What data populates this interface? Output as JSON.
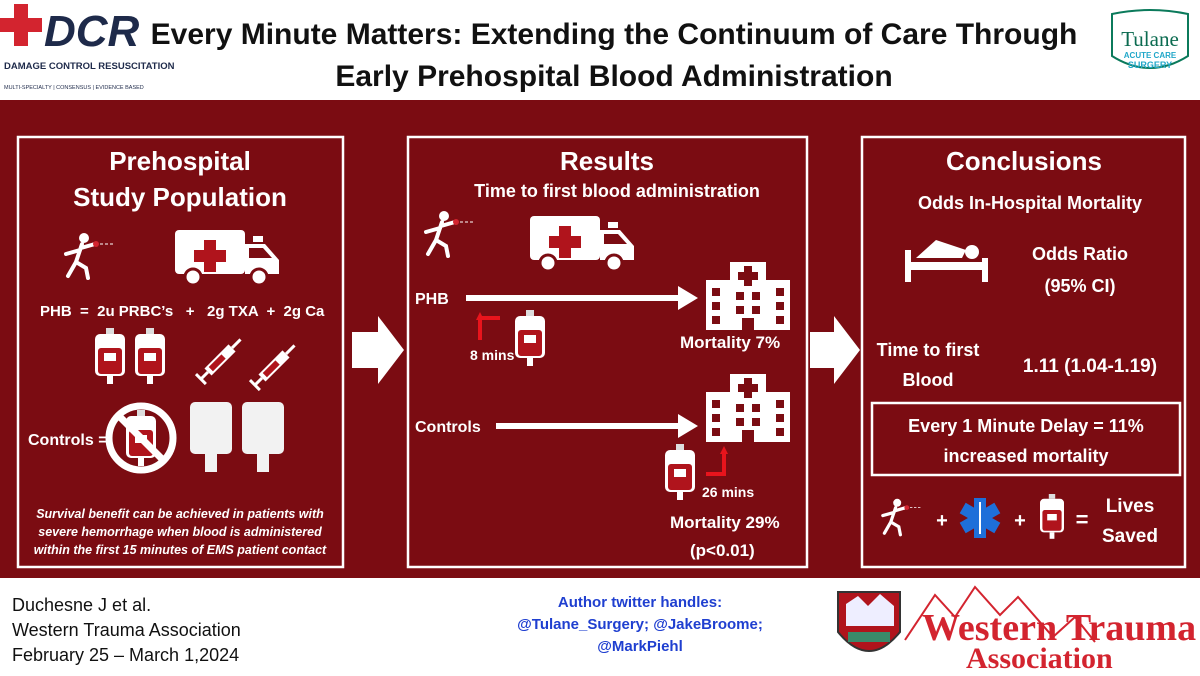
{
  "header": {
    "logo_left": {
      "mark": "DCR",
      "name": "DAMAGE CONTROL RESUSCITATION",
      "tagline": "MULTI-SPECIALTY | CONSENSUS | EVIDENCE BASED"
    },
    "title": [
      "Every Minute Matters: Extending the Continuum of Care Through",
      "Early Prehospital Blood Administration"
    ],
    "logo_right": {
      "name": "Tulane",
      "division": [
        "ACUTE CARE",
        "SURGERY"
      ]
    }
  },
  "population": {
    "title": [
      "Prehospital",
      "Study Population"
    ],
    "phb_definition": "PHB  =  2u PRBC’s   +   2g TXA  +  2g Ca",
    "controls": "Controls =",
    "note": [
      "Survival benefit can be achieved in patients with",
      "severe hemorrhage when blood is administered",
      "within the first 15 minutes of EMS patient contact"
    ]
  },
  "results": {
    "title": "Results",
    "subtitle": "Time to first blood administration",
    "phb": {
      "label": "PHB",
      "time": "8 mins",
      "mortality": "Mortality 7%"
    },
    "controls": {
      "label": "Controls",
      "time": "26 mins",
      "mortality": "Mortality 29%",
      "p_value": "(p<0.01)"
    }
  },
  "conclusions": {
    "title": "Conclusions",
    "subtitle": "Odds In-Hospital Mortality",
    "column_header": [
      "Odds Ratio",
      "(95% CI)"
    ],
    "row_label": [
      "Time to first",
      "Blood"
    ],
    "row_value": "1.11 (1.04-1.19)",
    "callout": [
      "Every 1 Minute Delay = 11%",
      "increased mortality"
    ],
    "equation": {
      "plus_1": "+",
      "plus_2": "+",
      "equals": "=",
      "result": [
        "Lives",
        "Saved"
      ]
    }
  },
  "footer": {
    "citation": [
      "Duchesne J et al.",
      "Western Trauma Association",
      "February 25 – March 1,2024"
    ],
    "twitter": [
      "Author twitter handles:",
      "@Tulane_Surgery; @JakeBroome;",
      "@MarkPiehl"
    ],
    "association": [
      "Western Trauma",
      "Association"
    ]
  }
}
